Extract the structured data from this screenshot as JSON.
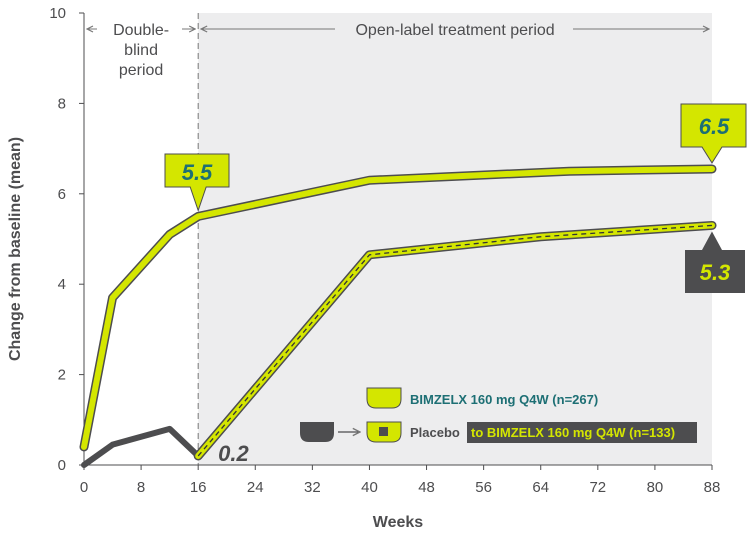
{
  "chart_data": {
    "type": "line",
    "xlabel": "Weeks",
    "ylabel": "Change from baseline (mean)",
    "xlim": [
      0,
      88
    ],
    "ylim": [
      0,
      10
    ],
    "xticks": [
      0,
      8,
      16,
      24,
      32,
      40,
      48,
      56,
      64,
      72,
      80,
      88
    ],
    "yticks": [
      0,
      2,
      4,
      6,
      8,
      10
    ],
    "grid": false,
    "periods": {
      "double_blind_lines": [
        "Double-",
        "blind",
        "period"
      ],
      "open_label": "Open-label treatment period",
      "split_week": 16
    },
    "series": [
      {
        "name": "BIMZELX 160 mg Q4W (n=267)",
        "color": "#d4e600",
        "x": [
          0,
          4,
          12,
          16,
          40,
          68,
          88
        ],
        "y": [
          0.4,
          3.7,
          5.1,
          5.5,
          6.3,
          6.5,
          6.55
        ]
      },
      {
        "name": "Placebo",
        "color": "#4d4d4f",
        "x": [
          0,
          4,
          12,
          16
        ],
        "y": [
          0.0,
          0.45,
          0.8,
          0.2
        ]
      },
      {
        "name": "to BIMZELX 160 mg Q4W (n=133)",
        "color": "#d4e600",
        "dashed": true,
        "x": [
          16,
          40,
          64,
          88
        ],
        "y": [
          0.2,
          4.65,
          5.05,
          5.3
        ]
      }
    ],
    "callouts": {
      "bimz_16": "5.5",
      "bimz_88": "6.5",
      "placebo_16": "0.2",
      "switch_88": "5.3"
    },
    "legend": {
      "placement": "bottom-right",
      "bimz_label": "BIMZELX 160 mg Q4W (n=267)",
      "placebo_label": "Placebo",
      "switch_label": "to BIMZELX 160 mg Q4W (n=133)"
    },
    "colors": {
      "lime": "#d4e600",
      "dark": "#4d4d4f",
      "teal": "#1d6f74",
      "shade": "#ededee"
    }
  }
}
